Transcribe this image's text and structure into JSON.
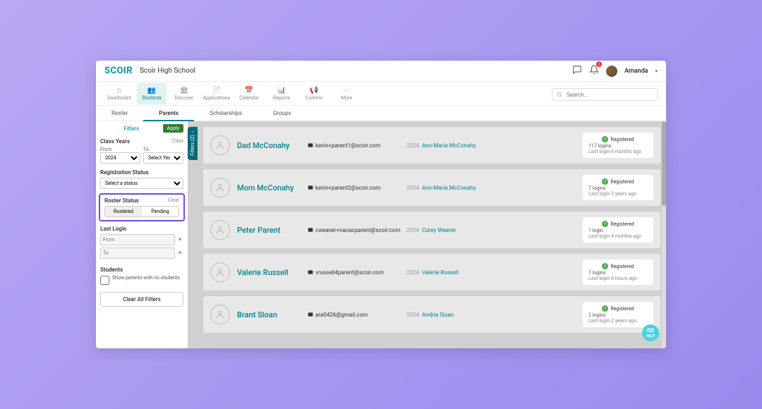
{
  "header": {
    "logo": "SCOIR",
    "school": "Scoir High School",
    "user": "Amanda",
    "notif_count": "1"
  },
  "nav": {
    "items": [
      {
        "icon": "⌂",
        "label": "Dashboard"
      },
      {
        "icon": "👥",
        "label": "Students"
      },
      {
        "icon": "🏛",
        "label": "Discover"
      },
      {
        "icon": "📄",
        "label": "Applications"
      },
      {
        "icon": "📅",
        "label": "Calendar"
      },
      {
        "icon": "📊",
        "label": "Reports"
      },
      {
        "icon": "📢",
        "label": "Comms"
      },
      {
        "icon": "⋯",
        "label": "More"
      }
    ],
    "search_placeholder": "Search..."
  },
  "subtabs": {
    "items": [
      "Roster",
      "Parents",
      "Scholarships",
      "Groups"
    ]
  },
  "filters": {
    "title": "Filters",
    "apply": "Apply",
    "toggle_label": "Filters (2)",
    "class_years": {
      "title": "Class Years",
      "clear": "Clear",
      "from": "From",
      "to": "To",
      "from_val": "2024",
      "to_val": "Select Year"
    },
    "reg_status": {
      "title": "Registration Status",
      "placeholder": "Select a status"
    },
    "roster_status": {
      "title": "Roster Status",
      "clear": "Clear",
      "rostered": "Rostered",
      "pending": "Pending"
    },
    "last_login": {
      "title": "Last Login",
      "from": "From",
      "to": "To"
    },
    "students": {
      "title": "Students",
      "checkbox": "Show parents with no students"
    },
    "clear_all": "Clear All Filters"
  },
  "parents": [
    {
      "name": "Dad McConahy",
      "email": "kevin+parent1@scoir.com",
      "year": "2024",
      "student": "Ann-Maria McConahy",
      "status": "Registered",
      "logins": "117 logins",
      "last": "Last login 6 months ago"
    },
    {
      "name": "Mom McConahy",
      "email": "kevin+parent2@scoir.com",
      "year": "2024",
      "student": "Ann-Maria McConahy",
      "status": "Registered",
      "logins": "7 logins",
      "last": "Last login 3 years ago"
    },
    {
      "name": "Peter Parent",
      "email": "cweaver+nacacparent@scoir.com",
      "year": "2024",
      "student": "Corey Weaver",
      "status": "Registered",
      "logins": "1 login",
      "last": "Last login 4 months ago"
    },
    {
      "name": "Valerie Russell",
      "email": "vrussell4parent@scoir.com",
      "year": "2024",
      "student": "Valerie Russell",
      "status": "Registered",
      "logins": "7 logins",
      "last": "Last login 6 hours ago"
    },
    {
      "name": "Brant Sloan",
      "email": "ara0426@gmail.com",
      "year": "2024",
      "student": "Andria Sloan",
      "status": "Registered",
      "logins": "2 logins",
      "last": "Last login 2 years ago"
    }
  ],
  "help": {
    "label": "HELP"
  }
}
